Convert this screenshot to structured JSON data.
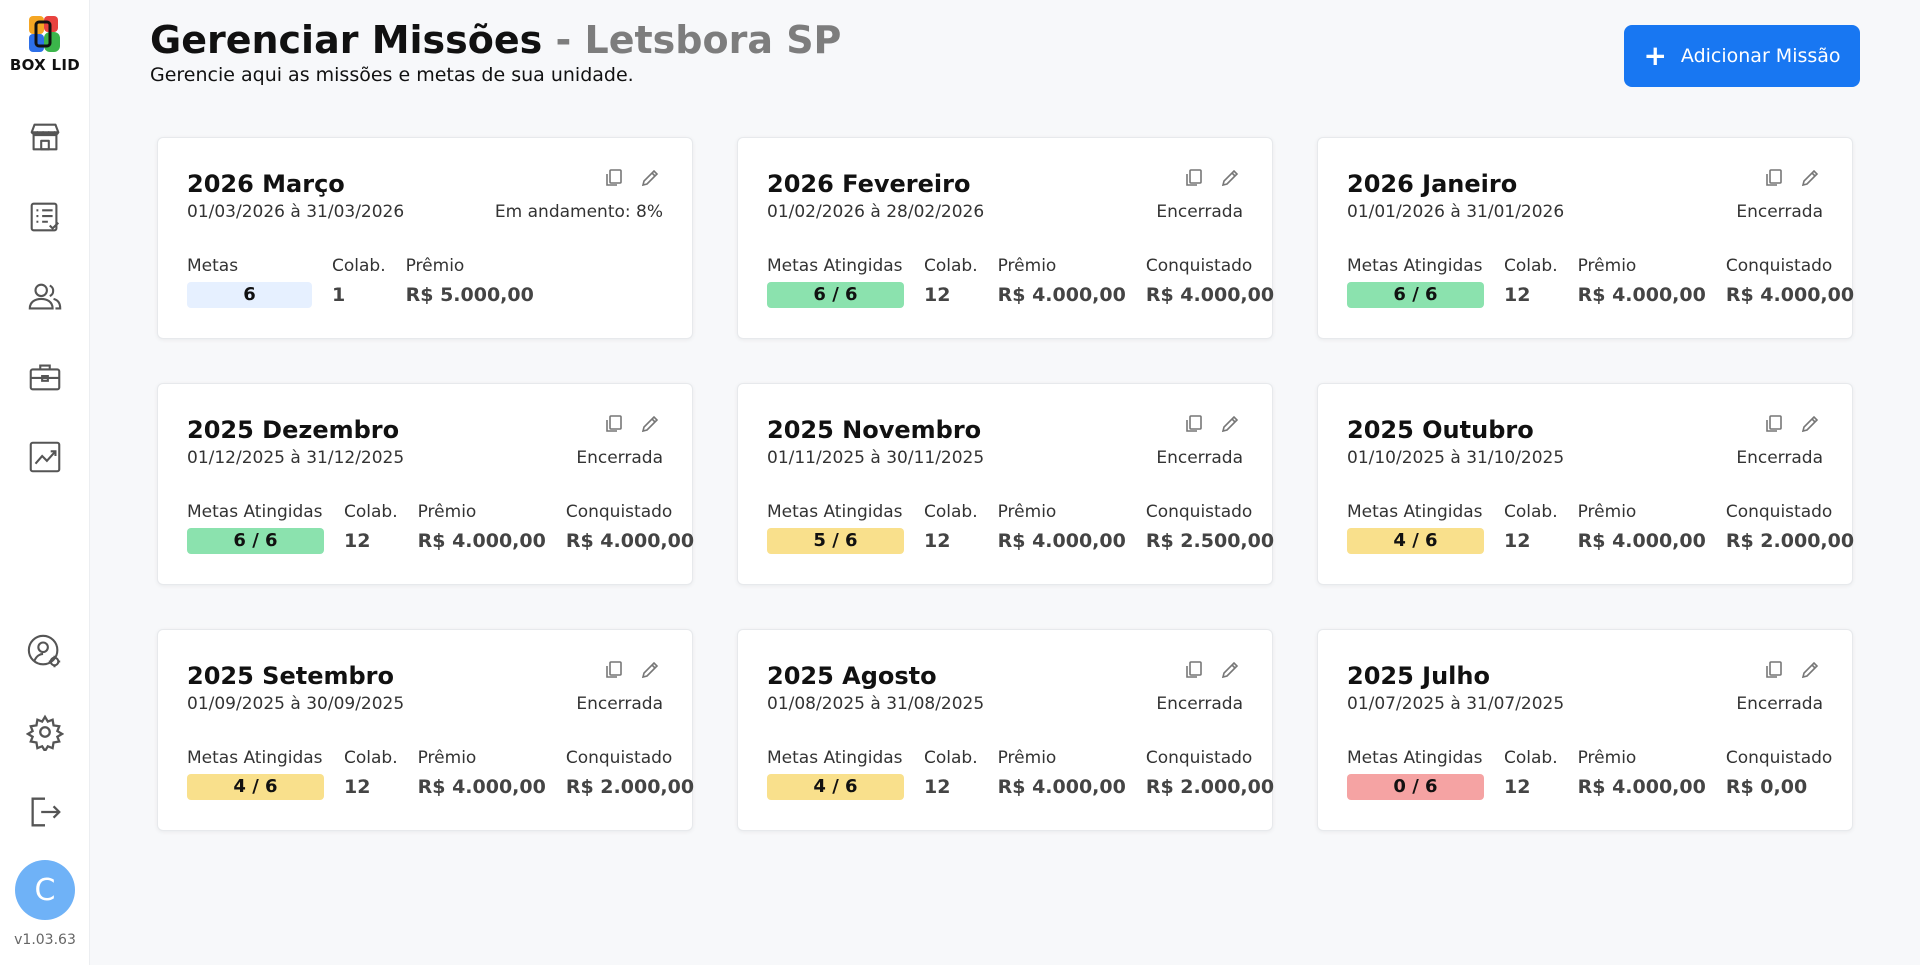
{
  "app": {
    "logo_text": "BOX LID",
    "version": "v1.03.63",
    "avatar_letter": "C"
  },
  "header": {
    "title": "Gerenciar Missões",
    "separator": " - ",
    "unit": "Letsbora SP",
    "subtitle": "Gerencie aqui as missões e metas de sua unidade.",
    "add_button_label": "Adicionar Missão"
  },
  "sidebar": {
    "icons": [
      "store-icon",
      "checklist-icon",
      "users-icon",
      "briefcase-icon",
      "chart-icon",
      "user-settings-icon",
      "gear-icon",
      "logout-icon"
    ]
  },
  "labels": {
    "metas": "Metas",
    "metas_atingidas": "Metas Atingidas",
    "colab": "Colab.",
    "premio": "Prêmio",
    "conquistado": "Conquistado"
  },
  "colors": {
    "accent": "#1877f2",
    "green": "#8be2ae",
    "yellow": "#f9e08c",
    "red": "#f5a3a3",
    "blue_light": "#e6f0ff"
  },
  "missions": [
    {
      "title": "2026 Março",
      "dates": "01/03/2026 à 31/03/2026",
      "status": "Em andamento: 8%",
      "goals": "6",
      "colab": "1",
      "premio": "R$ 5.000,00",
      "conquistado": "",
      "pill": "blue"
    },
    {
      "title": "2026 Fevereiro",
      "dates": "01/02/2026 à 28/02/2026",
      "status": "Encerrada",
      "goals": "6 / 6",
      "colab": "12",
      "premio": "R$ 4.000,00",
      "conquistado": "R$ 4.000,00",
      "pill": "green"
    },
    {
      "title": "2026 Janeiro",
      "dates": "01/01/2026 à 31/01/2026",
      "status": "Encerrada",
      "goals": "6 / 6",
      "colab": "12",
      "premio": "R$ 4.000,00",
      "conquistado": "R$ 4.000,00",
      "pill": "green"
    },
    {
      "title": "2025 Dezembro",
      "dates": "01/12/2025 à 31/12/2025",
      "status": "Encerrada",
      "goals": "6 / 6",
      "colab": "12",
      "premio": "R$ 4.000,00",
      "conquistado": "R$ 4.000,00",
      "pill": "green"
    },
    {
      "title": "2025 Novembro",
      "dates": "01/11/2025 à 30/11/2025",
      "status": "Encerrada",
      "goals": "5 / 6",
      "colab": "12",
      "premio": "R$ 4.000,00",
      "conquistado": "R$ 2.500,00",
      "pill": "yellow"
    },
    {
      "title": "2025 Outubro",
      "dates": "01/10/2025 à 31/10/2025",
      "status": "Encerrada",
      "goals": "4 / 6",
      "colab": "12",
      "premio": "R$ 4.000,00",
      "conquistado": "R$ 2.000,00",
      "pill": "yellow"
    },
    {
      "title": "2025 Setembro",
      "dates": "01/09/2025 à 30/09/2025",
      "status": "Encerrada",
      "goals": "4 / 6",
      "colab": "12",
      "premio": "R$ 4.000,00",
      "conquistado": "R$ 2.000,00",
      "pill": "yellow"
    },
    {
      "title": "2025 Agosto",
      "dates": "01/08/2025 à 31/08/2025",
      "status": "Encerrada",
      "goals": "4 / 6",
      "colab": "12",
      "premio": "R$ 4.000,00",
      "conquistado": "R$ 2.000,00",
      "pill": "yellow"
    },
    {
      "title": "2025 Julho",
      "dates": "01/07/2025 à 31/07/2025",
      "status": "Encerrada",
      "goals": "0 / 6",
      "colab": "12",
      "premio": "R$ 4.000,00",
      "conquistado": "R$ 0,00",
      "pill": "red"
    }
  ]
}
